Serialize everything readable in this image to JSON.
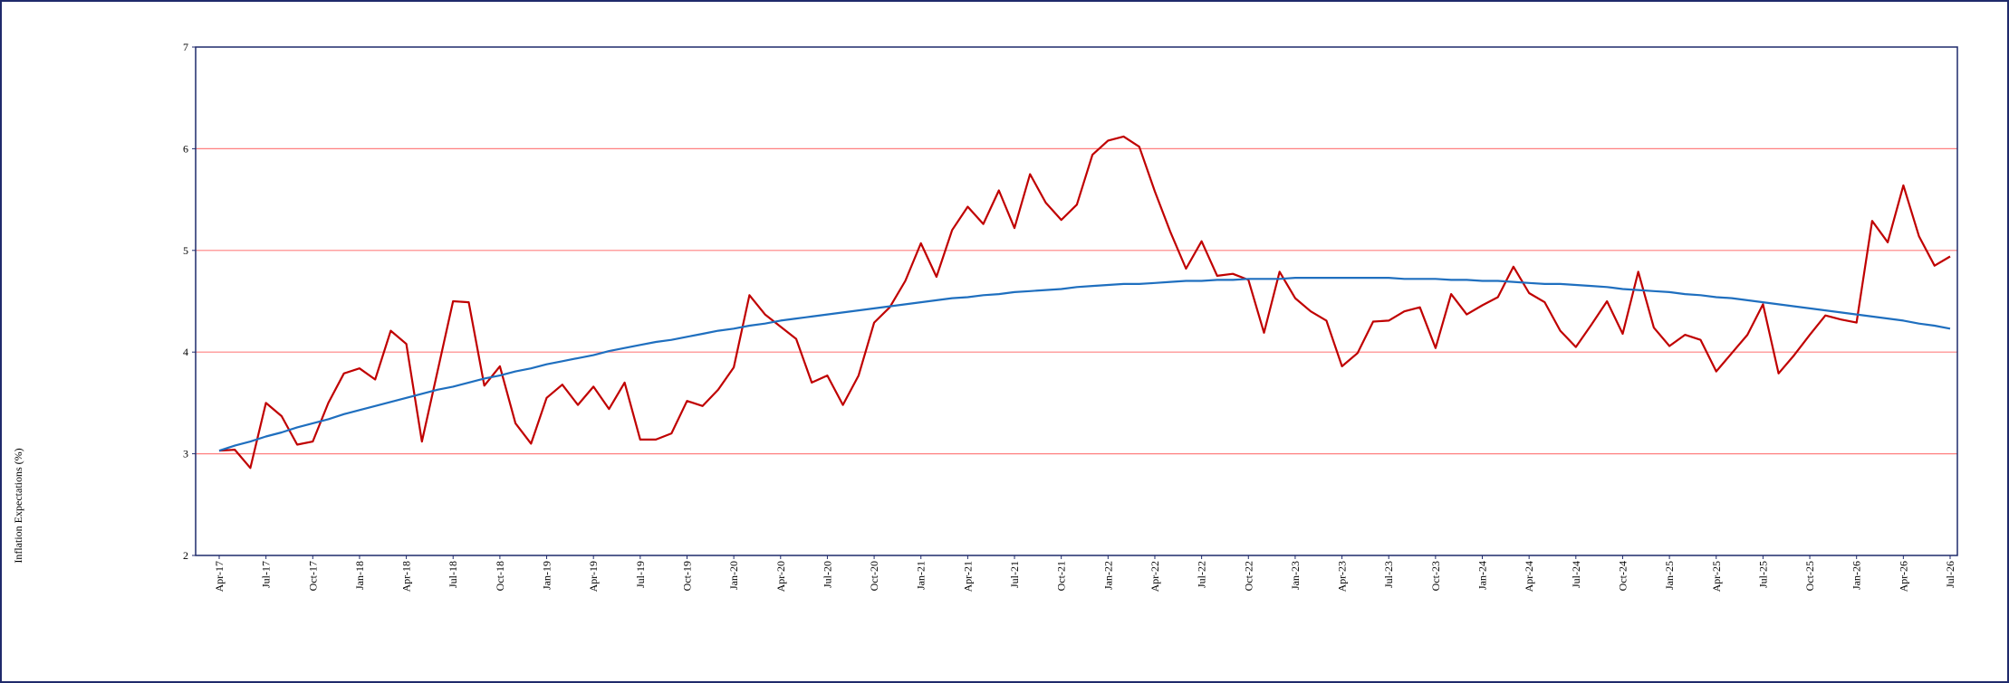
{
  "chart_data": {
    "type": "line",
    "y_label": "Inflation Expectations (%)",
    "ylim": [
      2,
      7
    ],
    "yticks": [
      2,
      3,
      4,
      5,
      6,
      7
    ],
    "grid": true,
    "grid_color": "#ff8080",
    "categories": [
      "Apr-17",
      null,
      null,
      "Jul-17",
      null,
      null,
      "Oct-17",
      null,
      null,
      "Jan-18",
      null,
      null,
      "Apr-18",
      null,
      null,
      "Jul-18",
      null,
      null,
      "Oct-18",
      null,
      null,
      "Jan-19",
      null,
      null,
      "Apr-19",
      null,
      null,
      "Jul-19",
      null,
      null,
      "Oct-19",
      null,
      null,
      "Jan-20",
      null,
      null,
      "Apr-20",
      null,
      null,
      "Jul-20",
      null,
      null,
      "Oct-20",
      null,
      null,
      "Jan-21",
      null,
      null,
      "Apr-21",
      null,
      null,
      "Jul-21",
      null,
      null,
      "Oct-21",
      null,
      null,
      "Jan-22",
      null,
      null,
      "Apr-22",
      null,
      null,
      "Jul-22",
      null,
      null,
      "Oct-22",
      null,
      null,
      "Jan-23",
      null,
      null,
      "Apr-23",
      null,
      null,
      "Jul-23",
      null,
      null,
      "Oct-23",
      null,
      null,
      "Jan-24",
      null,
      null,
      "Apr-24",
      null,
      null,
      "Jul-24",
      null,
      null,
      "Oct-24",
      null,
      null,
      "Jan-25",
      null,
      null,
      "Apr-25",
      null,
      null,
      "Jul-25",
      null,
      null,
      "Oct-25",
      null,
      null,
      "Jan-26",
      null,
      null,
      "Apr-26",
      null,
      null,
      "Jul-26"
    ],
    "series": [
      {
        "color": "#c00000",
        "values": [
          3.03,
          3.04,
          2.86,
          3.5,
          3.37,
          3.09,
          3.12,
          3.5,
          3.79,
          3.84,
          3.73,
          4.21,
          4.08,
          3.12,
          3.81,
          4.5,
          4.49,
          3.67,
          3.86,
          3.3,
          3.1,
          3.55,
          3.68,
          3.48,
          3.66,
          3.44,
          3.7,
          3.14,
          3.14,
          3.2,
          3.52,
          3.47,
          3.63,
          3.85,
          4.56,
          4.37,
          4.25,
          4.13,
          3.7,
          3.77,
          3.48,
          3.77,
          4.29,
          4.44,
          4.7,
          5.07,
          4.74,
          5.2,
          5.43,
          5.26,
          5.59,
          5.22,
          5.75,
          5.47,
          5.3,
          5.45,
          5.94,
          6.08,
          6.12,
          6.02,
          5.58,
          5.18,
          4.82,
          5.09,
          4.75,
          4.77,
          4.71,
          4.19,
          4.79,
          4.53,
          4.4,
          4.31,
          3.86,
          3.99,
          4.3,
          4.31,
          4.4,
          4.44,
          4.04,
          4.57,
          4.37,
          4.46,
          4.54,
          4.84,
          4.58,
          4.49,
          4.21,
          4.05,
          4.27,
          4.5,
          4.18,
          4.79,
          4.24,
          4.06,
          4.17,
          4.12,
          3.81,
          3.99,
          4.17,
          4.47,
          3.79,
          3.97,
          4.17,
          4.36,
          4.32,
          4.29,
          5.29,
          5.08,
          5.64,
          5.14,
          4.85,
          4.94
        ]
      },
      {
        "color": "#1f6fbf",
        "values": [
          3.03,
          3.08,
          3.12,
          3.17,
          3.21,
          3.26,
          3.3,
          3.34,
          3.39,
          3.43,
          3.47,
          3.51,
          3.55,
          3.59,
          3.63,
          3.66,
          3.7,
          3.74,
          3.77,
          3.81,
          3.84,
          3.88,
          3.91,
          3.94,
          3.97,
          4.01,
          4.04,
          4.07,
          4.1,
          4.12,
          4.15,
          4.18,
          4.21,
          4.23,
          4.26,
          4.28,
          4.31,
          4.33,
          4.35,
          4.37,
          4.39,
          4.41,
          4.43,
          4.45,
          4.47,
          4.49,
          4.51,
          4.53,
          4.54,
          4.56,
          4.57,
          4.59,
          4.6,
          4.61,
          4.62,
          4.64,
          4.65,
          4.66,
          4.67,
          4.67,
          4.68,
          4.69,
          4.7,
          4.7,
          4.71,
          4.71,
          4.72,
          4.72,
          4.72,
          4.73,
          4.73,
          4.73,
          4.73,
          4.73,
          4.73,
          4.73,
          4.72,
          4.72,
          4.72,
          4.71,
          4.71,
          4.7,
          4.7,
          4.69,
          4.68,
          4.67,
          4.67,
          4.66,
          4.65,
          4.64,
          4.62,
          4.61,
          4.6,
          4.59,
          4.57,
          4.56,
          4.54,
          4.53,
          4.51,
          4.49,
          4.47,
          4.45,
          4.43,
          4.41,
          4.39,
          4.37,
          4.35,
          4.33,
          4.31,
          4.28,
          4.26,
          4.23
        ]
      }
    ]
  }
}
